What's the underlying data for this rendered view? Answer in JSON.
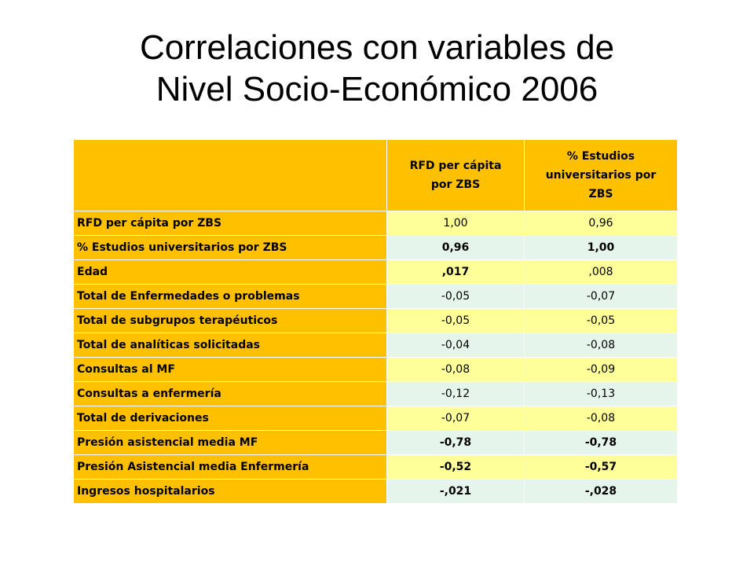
{
  "slide": {
    "title_line1": "Correlaciones con variables de",
    "title_line2": "Nivel Socio-Económico 2006"
  },
  "table": {
    "header": {
      "corner": "",
      "col1": [
        "RFD per cápita",
        "por ZBS"
      ],
      "col2": [
        "% Estudios",
        "universitarios por",
        "ZBS"
      ]
    },
    "rows": [
      {
        "label": "RFD per cápita por ZBS",
        "v1": "1,00",
        "v2": "0,96"
      },
      {
        "label": "% Estudios universitarios por ZBS",
        "v1": "0,96",
        "v2": "1,00"
      },
      {
        "label": "Edad",
        "v1": ",017",
        "v2": ",008"
      },
      {
        "label": "Total de Enfermedades o problemas",
        "v1": "-0,05",
        "v2": "-0,07"
      },
      {
        "label": "Total de subgrupos terapéuticos",
        "v1": "-0,05",
        "v2": "-0,05"
      },
      {
        "label": "Total de analíticas solicitadas",
        "v1": "-0,04",
        "v2": "-0,08"
      },
      {
        "label": "Consultas al MF",
        "v1": "-0,08",
        "v2": "-0,09"
      },
      {
        "label": "Consultas a enfermería",
        "v1": "-0,12",
        "v2": "-0,13"
      },
      {
        "label": "Total de derivaciones",
        "v1": "-0,07",
        "v2": "-0,08"
      },
      {
        "label": "Presión asistencial media MF",
        "v1": "-0,78",
        "v2": "-0,78"
      },
      {
        "label": "Presión Asistencial media Enfermería",
        "v1": "-0,52",
        "v2": "-0,57"
      },
      {
        "label": "Ingresos hospitalarios",
        "v1": "-,021",
        "v2": "-,028"
      }
    ]
  },
  "colors": {
    "label_fill": "#ffc000",
    "odd_row_fill": "#ffff99",
    "even_row_fill": "#e6f5ec",
    "text": "#000000"
  }
}
